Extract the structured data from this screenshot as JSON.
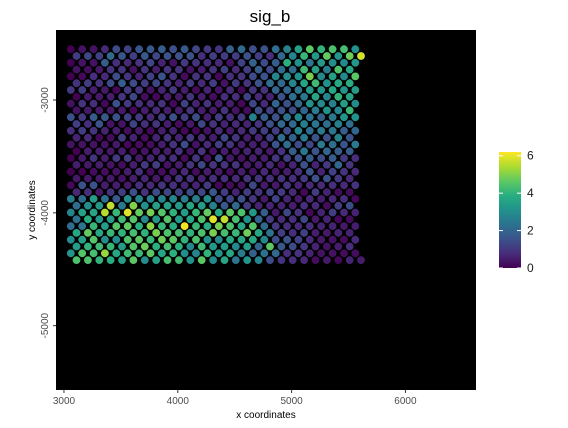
{
  "chart_data": {
    "type": "scatter",
    "title": "sig_b",
    "xlabel": "x coordinates",
    "ylabel": "y coordinates",
    "xlim": [
      2930,
      6620
    ],
    "ylim": [
      -5570,
      -2380
    ],
    "x_ticks": [
      3000,
      4000,
      5000,
      6000
    ],
    "y_ticks": [
      -3000,
      -4000,
      -5000
    ],
    "x_tick_labels": [
      "3000",
      "4000",
      "5000",
      "6000"
    ],
    "y_tick_labels": [
      "-3000",
      "-4000",
      "-5000"
    ],
    "background": "#000000",
    "colormap": "viridis",
    "color_range": [
      0,
      6.2
    ],
    "legend": {
      "position": "right",
      "ticks": [
        0,
        2,
        4,
        6
      ],
      "tick_labels": [
        "0",
        "2",
        "4",
        "6"
      ]
    },
    "grid": {
      "x_start": 3060,
      "x_step": 100,
      "y_top": -2550,
      "y_step": 60.3,
      "odd_row_offset": 50,
      "rows": [
        [
          0,
          0.3,
          0.3,
          0.7,
          1.4,
          1.2,
          1.6,
          1.7,
          1.8,
          1.5,
          1.7,
          1.3,
          1.0,
          0.9,
          1.9,
          2.1,
          1.5,
          1.5,
          2.2,
          2.7,
          3.5,
          4.6,
          4.0,
          4.4,
          4.3,
          3.1
        ],
        [
          1.1,
          1.3,
          1.2,
          2.1,
          1.6,
          1.1,
          1.7,
          1.3,
          1.6,
          1.5,
          1.5,
          0.8,
          1.1,
          1.1,
          1.1,
          1.5,
          1.1,
          0.8,
          2.1,
          2.8,
          4.1,
          3.3,
          4.7,
          3.2,
          4.8,
          5.8
        ],
        [
          0,
          0.3,
          0.3,
          1.8,
          0.8,
          0.7,
          0.9,
          1.3,
          0.6,
          0.3,
          1.0,
          0.9,
          0.8,
          0.7,
          0.3,
          1.2,
          1.9,
          1.4,
          1.8,
          3.9,
          3.1,
          2.4,
          3.3,
          3.0,
          2.9,
          3.3
        ],
        [
          0.3,
          0.2,
          0.4,
          0.9,
          0.9,
          0.3,
          0.9,
          0.5,
          0.9,
          0.9,
          0.3,
          0.5,
          0.9,
          1.2,
          0.7,
          1.1,
          1.8,
          1.4,
          2.2,
          2.2,
          4.2,
          3.5,
          2.6,
          4.4,
          3.7
        ],
        [
          0,
          0.1,
          0.8,
          0.7,
          1.4,
          0.9,
          0.6,
          1.2,
          1.6,
          0.9,
          0.2,
          0.9,
          0.9,
          0.1,
          0.8,
          0.9,
          1.4,
          1.6,
          2.8,
          3.0,
          3.1,
          4.9,
          2.9,
          3.5,
          2.9,
          4.6
        ],
        [
          0.9,
          1.1,
          0.9,
          1.4,
          1.8,
          1.4,
          1.1,
          1.3,
          0.9,
          0.6,
          1.0,
          0.7,
          1.1,
          0.3,
          1.0,
          0.9,
          1.5,
          2.2,
          2.1,
          2.8,
          3.6,
          4.2,
          3.1,
          3.7,
          3.8
        ],
        [
          1.0,
          1.1,
          0.5,
          0.4,
          0.1,
          1.0,
          0.9,
          0.3,
          0.6,
          1.0,
          0.5,
          0.2,
          0.6,
          0.3,
          0.7,
          0.1,
          0.9,
          0.9,
          2.0,
          2.0,
          2.4,
          3.3,
          3.2,
          3.7,
          3.2,
          3.4
        ],
        [
          0,
          0.4,
          0.4,
          0.5,
          0.9,
          1.3,
          0.2,
          0.1,
          0.5,
          0.4,
          0.9,
          0.5,
          0.2,
          0.8,
          0.8,
          1.2,
          0.7,
          0.6,
          1.5,
          2.2,
          2.4,
          3.6,
          2.8,
          4.0,
          3.6
        ],
        [
          0.3,
          0.9,
          0.8,
          0.1,
          1.5,
          1.0,
          0.8,
          0.7,
          0.9,
          0.1,
          1.2,
          0.6,
          0.9,
          0.5,
          0.5,
          0.1,
          1.3,
          0.7,
          2.0,
          1.5,
          2.1,
          3.1,
          2.9,
          2.7,
          3.4,
          3.0
        ],
        [
          0.3,
          0.4,
          0.4,
          0.4,
          0.4,
          0.1,
          0.5,
          0.7,
          0.5,
          0.5,
          0.9,
          0.5,
          0.4,
          0.9,
          0.3,
          0.2,
          1.4,
          1.2,
          1.5,
          1.4,
          2.0,
          2.5,
          3.1,
          2.8,
          4.1
        ],
        [
          1.5,
          1.0,
          1.8,
          1.7,
          1.5,
          1.2,
          1.0,
          0.7,
          1.1,
          1.5,
          1.1,
          1.4,
          0.5,
          1.1,
          0.8,
          1.0,
          2.7,
          1.8,
          1.6,
          2.3,
          2.8,
          2.3,
          1.9,
          2.5,
          3.2,
          3.1
        ],
        [
          1.1,
          0.8,
          1.5,
          0.3,
          0.3,
          1.2,
          0.8,
          0.9,
          0.5,
          0.2,
          0.4,
          1.3,
          0.9,
          0.6,
          0.7,
          0.6,
          0.9,
          1.5,
          2.1,
          2.1,
          2.6,
          2.4,
          2.2,
          2.6,
          2.2
        ],
        [
          0.8,
          1.1,
          0.9,
          0.6,
          0.5,
          0.2,
          0.4,
          0.1,
          0.5,
          0.6,
          0.1,
          0.1,
          0.3,
          0.7,
          0.4,
          0.7,
          1.0,
          1.1,
          1.1,
          1.4,
          2.7,
          2.2,
          2.5,
          2.4,
          1.8,
          2.0
        ],
        [
          0.6,
          0.7,
          0.1,
          0.2,
          1.1,
          0.6,
          0.2,
          0.6,
          0.9,
          0.6,
          1.0,
          0.7,
          0.5,
          1.3,
          0.9,
          0.5,
          0.6,
          1.2,
          2.2,
          1.9,
          2.5,
          1.6,
          1.5,
          2.7,
          1.6
        ],
        [
          0.3,
          0.3,
          0.3,
          0.3,
          0.4,
          0.1,
          0.2,
          0.2,
          0.5,
          0.9,
          1.4,
          0.3,
          0.7,
          1.1,
          0.9,
          0.5,
          0.5,
          0.6,
          1.6,
          2.2,
          1.4,
          1.3,
          2.5,
          2.2,
          1.6,
          2.5
        ],
        [
          0,
          0.5,
          0.5,
          0.4,
          0.5,
          0.2,
          0.3,
          0.5,
          0.5,
          0.8,
          0.3,
          0.9,
          0.3,
          0.5,
          0.4,
          0.6,
          0.6,
          0.4,
          0.9,
          1.8,
          2.4,
          1.6,
          2.0,
          1.8,
          1.8
        ],
        [
          0,
          0.4,
          0.9,
          0.5,
          1.0,
          1.1,
          0.4,
          0.6,
          0.8,
          0.8,
          0.2,
          0.9,
          0.3,
          1.6,
          0.4,
          0.3,
          0.5,
          0.5,
          0.9,
          1.1,
          1.5,
          1.8,
          1.4,
          1.8,
          1.0,
          0.8
        ],
        [
          0.5,
          0.4,
          0.5,
          0.3,
          0.2,
          0.5,
          1.0,
          1.1,
          0.3,
          0.5,
          0.9,
          1.3,
          0.9,
          0.9,
          0.9,
          0.4,
          0.5,
          0.7,
          0.3,
          0.6,
          1.5,
          0.6,
          1.0,
          2.0,
          0.9
        ],
        [
          0,
          0,
          0.2,
          0.2,
          0.3,
          0.5,
          0.8,
          0.2,
          0.2,
          0.4,
          0.7,
          0.2,
          0.5,
          0.4,
          0.2,
          0.5,
          0.3,
          0.7,
          0.4,
          0.5,
          0.8,
          1.6,
          0.6,
          1.2,
          0.9,
          0.7
        ],
        [
          0.4,
          0.4,
          0.4,
          0.4,
          0.3,
          0.5,
          0.6,
          0.4,
          0.5,
          0.9,
          0.9,
          0.6,
          0.8,
          0.8,
          0.7,
          0.9,
          0.9,
          0.8,
          0.9,
          0.8,
          1.0,
          1.5,
          1.5,
          1.0,
          0.7
        ],
        [
          0.1,
          1.5,
          1.6,
          0.5,
          0.5,
          0.4,
          0.8,
          0.7,
          0.9,
          0.8,
          0.6,
          0.6,
          1.0,
          0.1,
          0.2,
          0.3,
          1.3,
          0.4,
          0.4,
          0.9,
          0.6,
          0.7,
          0.7,
          0.8,
          0.7,
          0.9
        ],
        [
          0.7,
          0.8,
          0.4,
          0.9,
          1.1,
          1.5,
          0.9,
          1.4,
          1.3,
          1.2,
          1.4,
          1.3,
          1.7,
          1.1,
          0.6,
          1.1,
          0.9,
          1.2,
          1.0,
          0.7,
          0.1,
          1.1,
          0.6,
          0.2,
          0.2
        ],
        [
          2.6,
          2.2,
          3.4,
          2.3,
          1.7,
          3.0,
          2.8,
          2.8,
          2.8,
          2.8,
          2.6,
          2.6,
          3.0,
          1.4,
          1.3,
          1.5,
          0.9,
          0.4,
          1.2,
          0.6,
          0.4,
          0.7,
          0.5,
          0.7,
          0.8,
          0.1
        ],
        [
          2.2,
          3.0,
          3.3,
          5.6,
          2.5,
          5.0,
          3.1,
          3.5,
          3.5,
          3.3,
          3.6,
          3.4,
          2.7,
          1.7,
          2.1,
          1.0,
          0.6,
          0.6,
          0.6,
          0.5,
          0.8,
          0.7,
          0.2,
          1.1,
          1.4
        ],
        [
          2.8,
          3.5,
          3.6,
          5.5,
          4.1,
          5.9,
          4.7,
          4.9,
          4.5,
          4.0,
          3.4,
          4.1,
          4.7,
          3.8,
          4.6,
          4.4,
          3.3,
          1.8,
          0.4,
          1.3,
          0.9,
          0.1,
          0.6,
          1.1,
          0.7,
          0.6
        ],
        [
          2.3,
          3.8,
          3.3,
          3.4,
          4.2,
          4.5,
          2.9,
          3.3,
          4.5,
          3.4,
          3.7,
          4.4,
          5.9,
          5.6,
          4.3,
          3.1,
          2.0,
          1.0,
          0.7,
          0.8,
          1.3,
          0.4,
          0.6,
          0.1,
          0.2
        ],
        [
          2.2,
          2.4,
          4.1,
          3.4,
          4.5,
          4.7,
          3.9,
          5.1,
          4.1,
          3.8,
          6.1,
          4.1,
          3.8,
          4.9,
          4.4,
          3.6,
          4.5,
          2.1,
          1.0,
          0.8,
          0.7,
          0.8,
          0.6,
          0.6,
          0.4,
          0.5
        ],
        [
          3.7,
          4.7,
          3.7,
          4.1,
          4.0,
          4.3,
          4.0,
          4.9,
          4.4,
          4.3,
          4.0,
          4.4,
          4.9,
          4.3,
          4.1,
          4.8,
          3.6,
          2.3,
          1.1,
          0.8,
          1.2,
          0.5,
          0.4,
          0.6,
          0.6
        ],
        [
          3.0,
          3.5,
          4.5,
          3.0,
          3.0,
          4.4,
          4.6,
          4.1,
          4.8,
          4.6,
          4.0,
          4.4,
          3.1,
          2.9,
          3.7,
          3.6,
          3.7,
          2.8,
          1.4,
          1.6,
          1.2,
          0.7,
          0.4,
          0.3,
          0.2,
          0.7
        ],
        [
          3.4,
          4.0,
          4.2,
          4.1,
          3.4,
          4.5,
          4.8,
          3.9,
          4.3,
          3.9,
          2.9,
          4.2,
          3.3,
          3.4,
          2.9,
          3.4,
          2.0,
          4.6,
          1.7,
          1.4,
          1.0,
          0.6,
          0.3,
          0.5,
          0.8
        ],
        [
          3.2,
          4.5,
          4.3,
          5.2,
          3.7,
          4.2,
          4.1,
          4.6,
          3.7,
          3.9,
          3.0,
          2.8,
          4.0,
          3.2,
          3.6,
          2.6,
          1.9,
          2.3,
          2.1,
          0.8,
          0.9,
          0.6,
          0.3,
          0.3,
          0.2,
          0.2
        ],
        [
          4.4,
          4.4,
          4.0,
          3.8,
          3.5,
          4.6,
          3.0,
          3.5,
          4.3,
          4.2,
          3.1,
          4.6,
          2.9,
          3.6,
          2.4,
          3.2,
          2.8,
          1.4,
          0.9,
          0.8,
          0.7,
          0.2,
          0.4,
          0.1,
          0.6,
          0.5
        ]
      ]
    }
  }
}
